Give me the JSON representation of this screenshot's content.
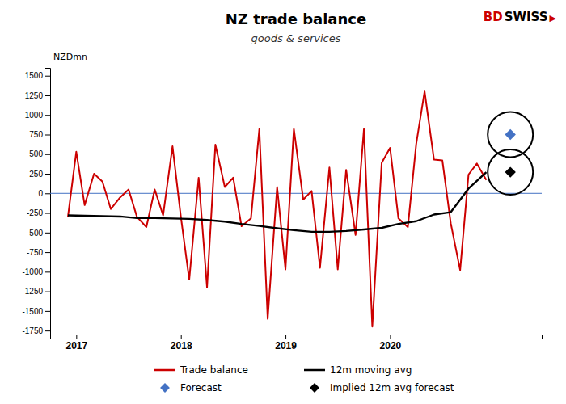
{
  "chart_data": {
    "type": "line",
    "title": "NZ trade balance",
    "subtitle": "goods & services",
    "ylabel": "NZDmn",
    "xlim": [
      2016.75,
      2021.45
    ],
    "xticks": [
      2017,
      2018,
      2019,
      2020
    ],
    "ylim": [
      -1800,
      1600
    ],
    "yticks": [
      -1750,
      -1500,
      -1250,
      -1000,
      -750,
      -500,
      -250,
      0,
      250,
      500,
      750,
      1000,
      1250,
      1500
    ],
    "grid": false,
    "legend": "bottom",
    "series": [
      {
        "name": "Trade balance",
        "type": "line",
        "color": "#cc0000",
        "x": [
          2016.92,
          2017.0,
          2017.08,
          2017.17,
          2017.25,
          2017.33,
          2017.42,
          2017.5,
          2017.58,
          2017.67,
          2017.75,
          2017.83,
          2017.92,
          2018.0,
          2018.08,
          2018.17,
          2018.25,
          2018.33,
          2018.42,
          2018.5,
          2018.58,
          2018.67,
          2018.75,
          2018.83,
          2018.92,
          2019.0,
          2019.08,
          2019.17,
          2019.25,
          2019.33,
          2019.42,
          2019.5,
          2019.58,
          2019.67,
          2019.75,
          2019.83,
          2019.92,
          2020.0,
          2020.08,
          2020.17,
          2020.25,
          2020.33,
          2020.42,
          2020.5,
          2020.58,
          2020.67,
          2020.75,
          2020.83,
          2020.92
        ],
        "values": [
          -300,
          530,
          -150,
          250,
          150,
          -200,
          -50,
          50,
          -300,
          -430,
          50,
          -280,
          600,
          -300,
          -1100,
          200,
          -1200,
          620,
          80,
          200,
          -420,
          -320,
          820,
          -1600,
          80,
          -970,
          820,
          -80,
          30,
          -950,
          330,
          -970,
          300,
          -530,
          820,
          -1700,
          390,
          580,
          -320,
          -430,
          630,
          1300,
          430,
          420,
          -380,
          -980,
          240,
          380,
          170
        ]
      },
      {
        "name": "12m moving avg",
        "type": "line",
        "color": "#000000",
        "x": [
          2016.92,
          2017.08,
          2017.25,
          2017.42,
          2017.58,
          2017.75,
          2017.92,
          2018.08,
          2018.25,
          2018.42,
          2018.58,
          2018.75,
          2018.92,
          2019.08,
          2019.25,
          2019.42,
          2019.58,
          2019.75,
          2019.92,
          2020.08,
          2020.25,
          2020.42,
          2020.58,
          2020.75,
          2020.92
        ],
        "values": [
          -280,
          -285,
          -290,
          -295,
          -315,
          -315,
          -320,
          -325,
          -340,
          -360,
          -390,
          -415,
          -445,
          -470,
          -490,
          -490,
          -480,
          -460,
          -440,
          -390,
          -355,
          -270,
          -240,
          60,
          270
        ]
      },
      {
        "name": "Forecast",
        "type": "scatter",
        "marker": "diamond",
        "color": "#4472c4",
        "x": [
          2021.15
        ],
        "values": [
          750
        ]
      },
      {
        "name": "Implied 12m avg forecast",
        "type": "scatter",
        "marker": "diamond",
        "color": "#000000",
        "x": [
          2021.15
        ],
        "values": [
          270
        ]
      }
    ],
    "reference_lines": [
      {
        "y": 0,
        "color": "#4472c4"
      }
    ],
    "annotations": [
      {
        "text": "BD",
        "color": "#cc0000"
      },
      {
        "text": "SWISS",
        "color": "#000000"
      },
      {
        "text": "▶",
        "color": "#cc0000"
      }
    ]
  }
}
